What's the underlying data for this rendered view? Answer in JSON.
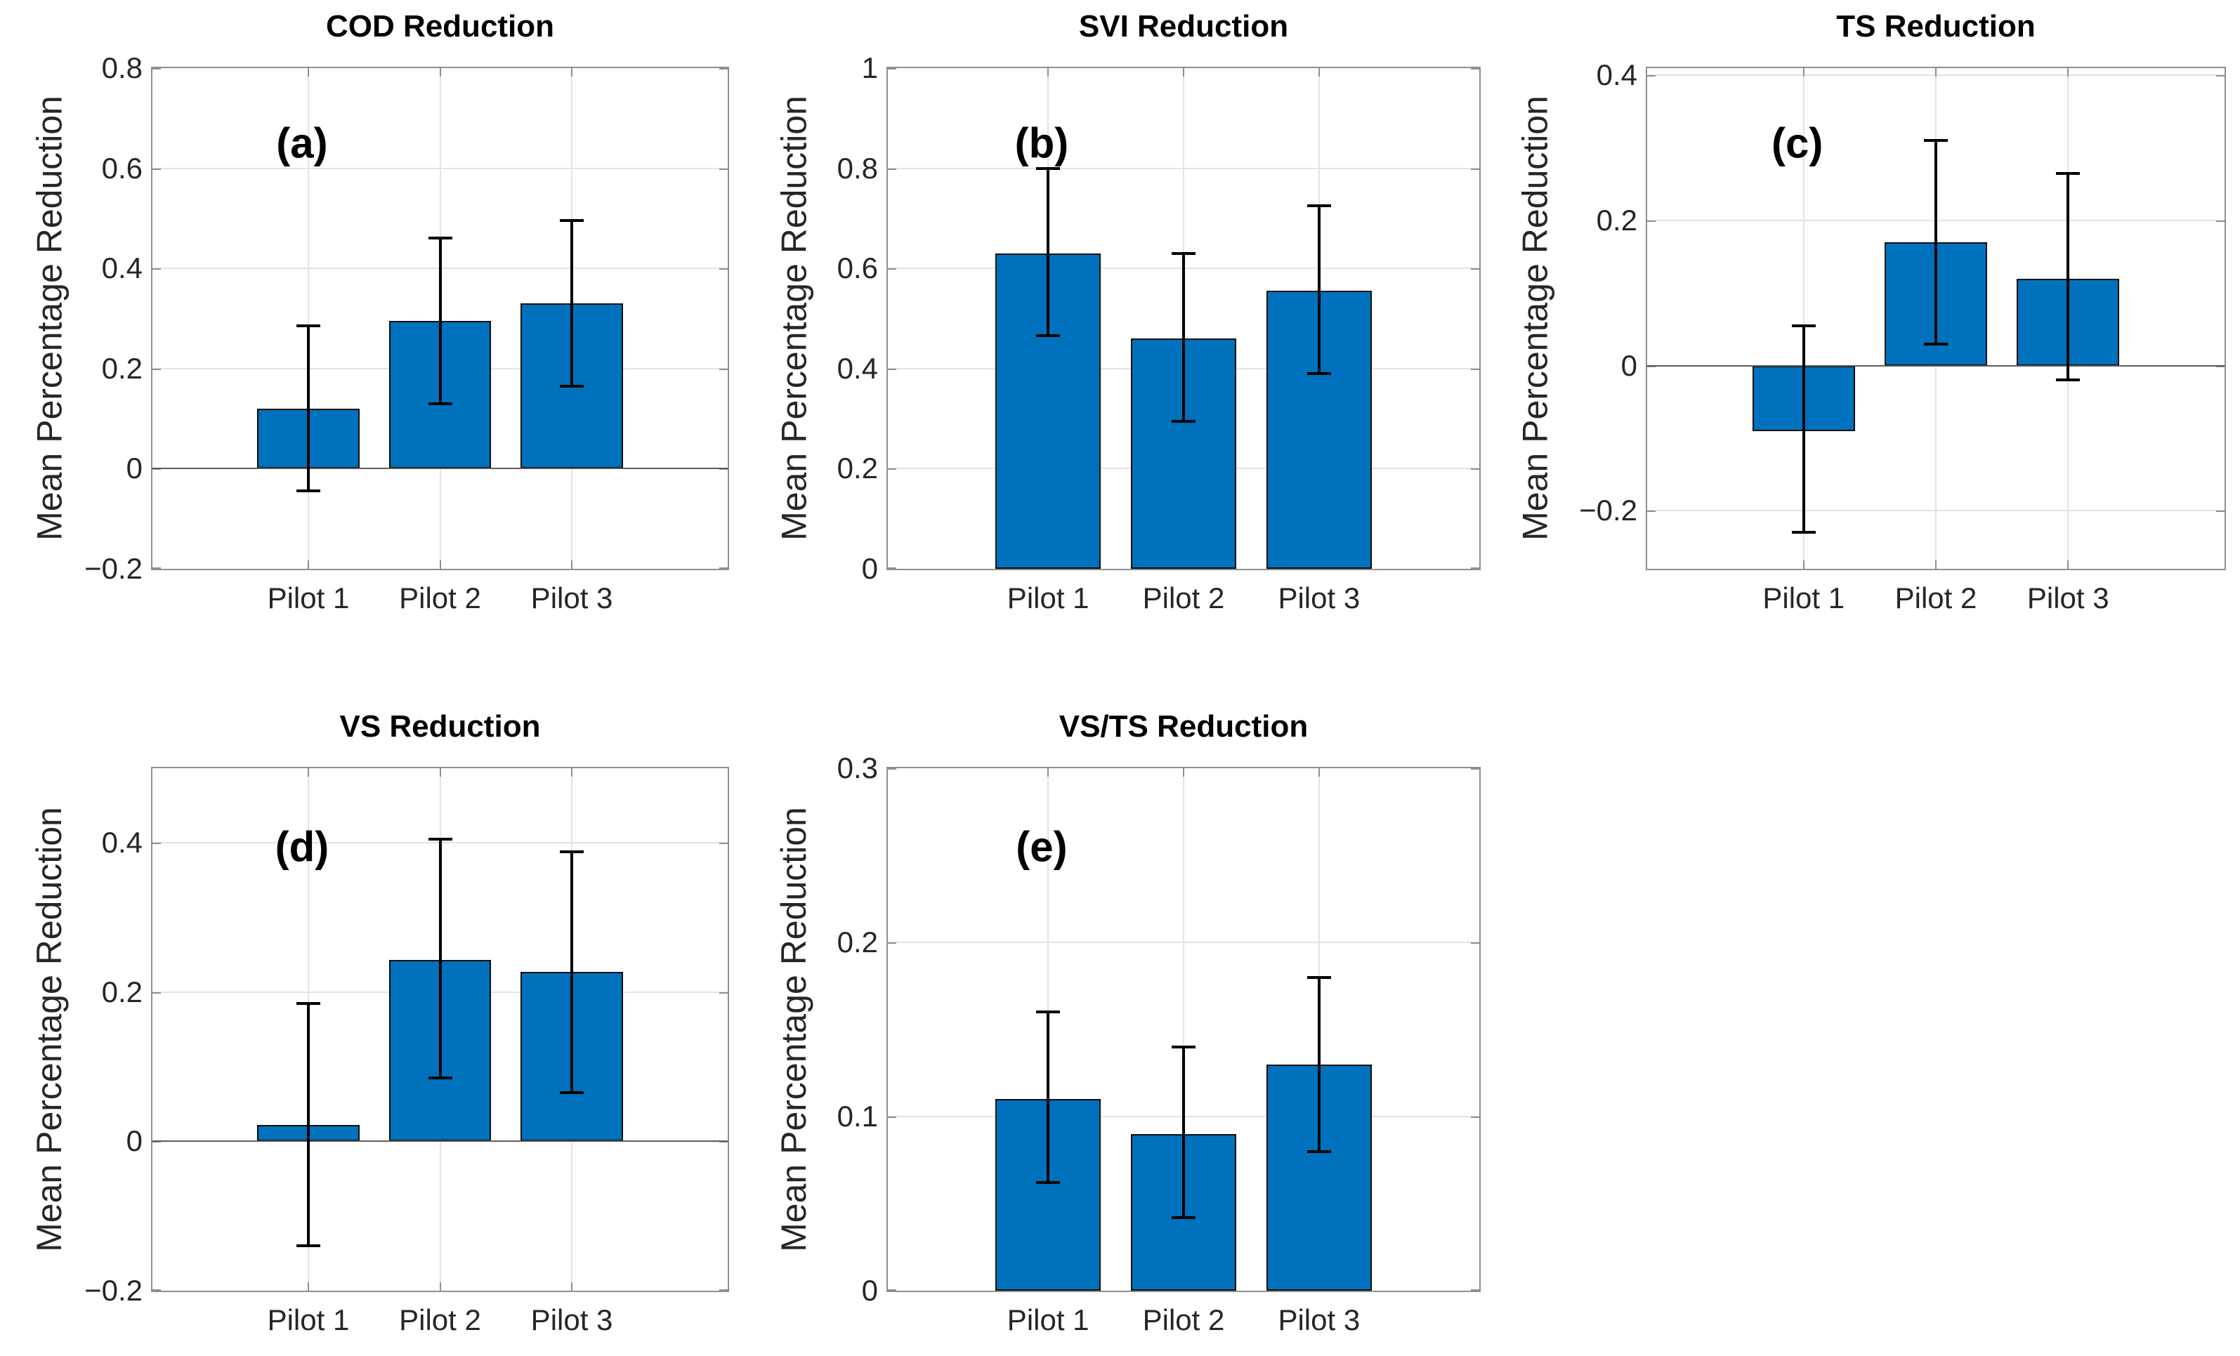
{
  "figure": {
    "background": "#ffffff",
    "shared_ylabel": "Mean Percentage Reduction",
    "bar_color": "#0072BD",
    "bar_edge_color": "#0e0e0e",
    "error_bar_color": "#000000",
    "axis_frame_color": "#8f8f8f",
    "grid_color": "#e3e3e3",
    "text_color": "#262626"
  },
  "chart_data": [
    {
      "type": "bar",
      "panel_label": "(a)",
      "title": "COD Reduction",
      "ylabel": "Mean Percentage Reduction",
      "xlabel": "",
      "categories": [
        "Pilot 1",
        "Pilot 2",
        "Pilot 3"
      ],
      "values": [
        0.12,
        0.295,
        0.33
      ],
      "error_low": [
        -0.045,
        0.13,
        0.165
      ],
      "error_high": [
        0.285,
        0.46,
        0.495
      ],
      "ylim": [
        -0.2,
        0.8
      ],
      "yticks": [
        -0.2,
        0,
        0.2,
        0.4,
        0.6,
        0.8
      ],
      "ytick_labels": [
        "−0.2",
        "0",
        "0.2",
        "0.4",
        "0.6",
        "0.8"
      ],
      "grid": true,
      "legend": "none"
    },
    {
      "type": "bar",
      "panel_label": "(b)",
      "title": "SVI Reduction",
      "ylabel": "Mean Percentage Reduction",
      "xlabel": "",
      "categories": [
        "Pilot 1",
        "Pilot 2",
        "Pilot 3"
      ],
      "values": [
        0.63,
        0.46,
        0.555
      ],
      "error_low": [
        0.465,
        0.295,
        0.39
      ],
      "error_high": [
        0.8,
        0.63,
        0.725
      ],
      "ylim": [
        0,
        1
      ],
      "yticks": [
        0,
        0.2,
        0.4,
        0.6,
        0.8,
        1
      ],
      "ytick_labels": [
        "0",
        "0.2",
        "0.4",
        "0.6",
        "0.8",
        "1"
      ],
      "grid": true,
      "legend": "none"
    },
    {
      "type": "bar",
      "panel_label": "(c)",
      "title": "TS Reduction",
      "ylabel": "Mean Percentage Reduction",
      "xlabel": "",
      "categories": [
        "Pilot 1",
        "Pilot 2",
        "Pilot 3"
      ],
      "values": [
        -0.09,
        0.17,
        0.12
      ],
      "error_low": [
        -0.23,
        0.03,
        -0.02
      ],
      "error_high": [
        0.055,
        0.31,
        0.265
      ],
      "ylim": [
        -0.28,
        0.41
      ],
      "yticks": [
        -0.2,
        0,
        0.2,
        0.4
      ],
      "ytick_labels": [
        "−0.2",
        "0",
        "0.2",
        "0.4"
      ],
      "grid": true,
      "legend": "none"
    },
    {
      "type": "bar",
      "panel_label": "(d)",
      "title": "VS Reduction",
      "ylabel": "Mean Percentage Reduction",
      "xlabel": "",
      "categories": [
        "Pilot 1",
        "Pilot 2",
        "Pilot 3"
      ],
      "values": [
        0.022,
        0.243,
        0.227
      ],
      "error_low": [
        -0.14,
        0.085,
        0.065
      ],
      "error_high": [
        0.185,
        0.405,
        0.388
      ],
      "ylim": [
        -0.2,
        0.5
      ],
      "yticks": [
        -0.2,
        0,
        0.2,
        0.4
      ],
      "ytick_labels": [
        "−0.2",
        "0",
        "0.2",
        "0.4"
      ],
      "grid": true,
      "legend": "none"
    },
    {
      "type": "bar",
      "panel_label": "(e)",
      "title": "VS/TS Reduction",
      "ylabel": "Mean Percentage Reduction",
      "xlabel": "",
      "categories": [
        "Pilot 1",
        "Pilot 2",
        "Pilot 3"
      ],
      "values": [
        0.11,
        0.09,
        0.13
      ],
      "error_low": [
        0.062,
        0.042,
        0.08
      ],
      "error_high": [
        0.16,
        0.14,
        0.18
      ],
      "ylim": [
        0,
        0.3
      ],
      "yticks": [
        0,
        0.1,
        0.2,
        0.3
      ],
      "ytick_labels": [
        "0",
        "0.1",
        "0.2",
        "0.3"
      ],
      "grid": true,
      "legend": "none"
    }
  ]
}
